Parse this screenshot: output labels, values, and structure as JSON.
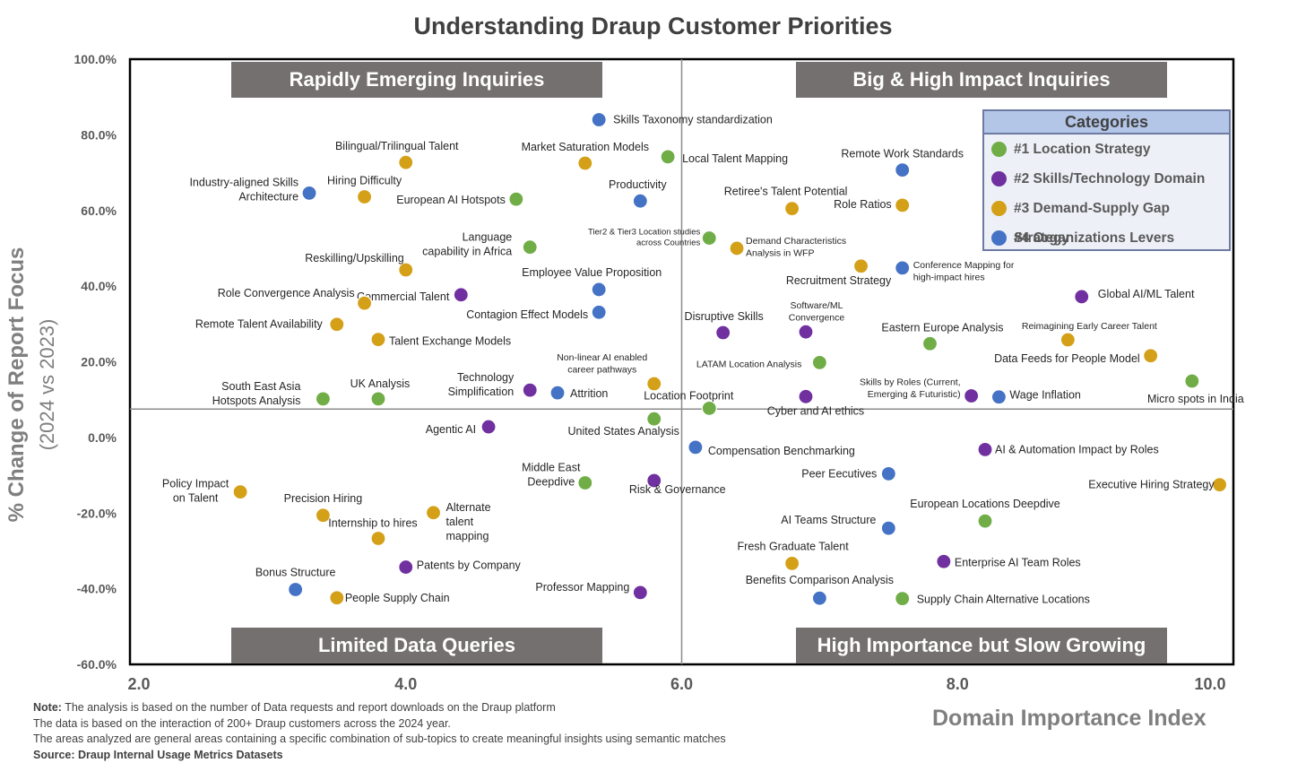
{
  "chart_data": {
    "type": "scatter",
    "title": "Understanding Draup Customer Priorities",
    "xlabel": "Domain Importance Index",
    "ylabel": "% Change of Report Focus",
    "ylabel_sub": "(2024 vs 2023)",
    "xlim": [
      2.0,
      10.0
    ],
    "ylim": [
      -60,
      100
    ],
    "x_ticks": [
      2.0,
      4.0,
      6.0,
      8.0,
      10.0
    ],
    "x_tick_labels": [
      "2.0",
      "4.0",
      "6.0",
      "8.0",
      "10.0"
    ],
    "y_ticks": [
      100,
      80,
      60,
      40,
      20,
      0,
      -20,
      -40,
      -60
    ],
    "y_tick_labels": [
      "100.0%",
      "80.0%",
      "60.0%",
      "40.0%",
      "20.0%",
      "0.0%",
      "-20.0%",
      "-40.0%",
      "-60.0%"
    ],
    "grid": false,
    "divider_x": 6.0,
    "divider_y": 7.5,
    "quadrants": {
      "top_left": "Rapidly Emerging Inquiries",
      "top_right": "Big & High Impact Inquiries",
      "bottom_left": "Limited Data Queries",
      "bottom_right": "High Importance but Slow Growing"
    },
    "legend": {
      "title": "Categories",
      "placement": "top-right",
      "items": [
        {
          "label": "#1 Location Strategy",
          "color": "#70ad47"
        },
        {
          "label": "#2 Skills/Technology Domain",
          "color": "#7030a0"
        },
        {
          "label": "#3 Demand-Supply Gap Strategy",
          "color": "#d4a017"
        },
        {
          "label": "#4 Organizations Levers",
          "color": "#4472c4"
        }
      ]
    },
    "points": [
      {
        "label": "Skills Taxonomy standardization",
        "x": 5.4,
        "y": 84.0,
        "cat": 3
      },
      {
        "label": "Bilingual/Trilingual Talent",
        "x": 4.0,
        "y": 72.7,
        "cat": 2
      },
      {
        "label": "Market Saturation Models",
        "x": 5.3,
        "y": 72.5,
        "cat": 2
      },
      {
        "label": "Local Talent Mapping",
        "x": 5.9,
        "y": 74.2,
        "cat": 0
      },
      {
        "label": "Remote Work Standards",
        "x": 7.6,
        "y": 70.7,
        "cat": 3
      },
      {
        "label": "Industry-aligned Skills Architecture",
        "x": 3.3,
        "y": 64.6,
        "cat": 3
      },
      {
        "label": "Hiring Difficulty",
        "x": 3.7,
        "y": 63.6,
        "cat": 2
      },
      {
        "label": "European AI Hotspots",
        "x": 4.8,
        "y": 63.0,
        "cat": 0
      },
      {
        "label": "Productivity",
        "x": 5.7,
        "y": 62.5,
        "cat": 3
      },
      {
        "label": "Retiree's Talent Potential",
        "x": 6.8,
        "y": 60.5,
        "cat": 2
      },
      {
        "label": "Role Ratios",
        "x": 7.6,
        "y": 61.4,
        "cat": 2
      },
      {
        "label": "Language capability in Africa",
        "x": 4.9,
        "y": 50.3,
        "cat": 0
      },
      {
        "label": "Tier2 & Tier3 Location studies across Countries",
        "x": 6.2,
        "y": 52.7,
        "cat": 0
      },
      {
        "label": "Demand Characteristics Analysis in WFP",
        "x": 6.4,
        "y": 50.0,
        "cat": 2
      },
      {
        "label": "Reskilling/Upskilling",
        "x": 4.0,
        "y": 44.3,
        "cat": 2
      },
      {
        "label": "Recruitment Strategy",
        "x": 7.3,
        "y": 45.3,
        "cat": 2
      },
      {
        "label": "Conference Mapping for high-impact hires",
        "x": 7.6,
        "y": 44.8,
        "cat": 3
      },
      {
        "label": "Employee Value Proposition",
        "x": 5.4,
        "y": 39.1,
        "cat": 3
      },
      {
        "label": "Commercial Talent",
        "x": 4.4,
        "y": 37.7,
        "cat": 1
      },
      {
        "label": "Role Convergence Analysis",
        "x": 3.7,
        "y": 35.5,
        "cat": 2
      },
      {
        "label": "Global AI/ML Talent",
        "x": 8.9,
        "y": 37.2,
        "cat": 1
      },
      {
        "label": "Contagion Effect Models",
        "x": 5.4,
        "y": 33.1,
        "cat": 3
      },
      {
        "label": "Remote Talent Availability",
        "x": 3.5,
        "y": 29.9,
        "cat": 2
      },
      {
        "label": "Disruptive Skills",
        "x": 6.3,
        "y": 27.7,
        "cat": 1
      },
      {
        "label": "Software/ML Convergence",
        "x": 6.9,
        "y": 27.9,
        "cat": 1
      },
      {
        "label": "Talent Exchange Models",
        "x": 3.8,
        "y": 25.9,
        "cat": 2
      },
      {
        "label": "Eastern Europe Analysis",
        "x": 7.8,
        "y": 24.8,
        "cat": 0
      },
      {
        "label": "Reimagining Early Career Talent",
        "x": 8.8,
        "y": 25.8,
        "cat": 2
      },
      {
        "label": "Data Feeds for People Model",
        "x": 9.4,
        "y": 21.6,
        "cat": 2
      },
      {
        "label": "LATAM Location Analysis",
        "x": 7.0,
        "y": 19.8,
        "cat": 0
      },
      {
        "label": "Non-linear AI enabled career pathways",
        "x": 5.8,
        "y": 14.2,
        "cat": 2
      },
      {
        "label": "Technology Simplification",
        "x": 4.9,
        "y": 12.5,
        "cat": 1
      },
      {
        "label": "Attrition",
        "x": 5.1,
        "y": 11.8,
        "cat": 3
      },
      {
        "label": "South East Asia Hotspots Analysis",
        "x": 3.4,
        "y": 10.2,
        "cat": 0
      },
      {
        "label": "UK Analysis",
        "x": 3.8,
        "y": 10.2,
        "cat": 0
      },
      {
        "label": "Location Footprint",
        "x": 6.2,
        "y": 7.7,
        "cat": 0
      },
      {
        "label": "Cyber and AI ethics",
        "x": 6.9,
        "y": 10.8,
        "cat": 1
      },
      {
        "label": "Skills by Roles (Current, Emerging & Futuristic)",
        "x": 8.1,
        "y": 11.0,
        "cat": 1
      },
      {
        "label": "Wage Inflation",
        "x": 8.3,
        "y": 10.7,
        "cat": 3
      },
      {
        "label": "Micro spots in India",
        "x": 9.7,
        "y": 14.9,
        "cat": 0
      },
      {
        "label": "Agentic AI",
        "x": 4.6,
        "y": 2.8,
        "cat": 1
      },
      {
        "label": "United States Analysis",
        "x": 5.8,
        "y": 4.9,
        "cat": 0
      },
      {
        "label": "Compensation Benchmarking",
        "x": 6.1,
        "y": -2.6,
        "cat": 3
      },
      {
        "label": "AI & Automation Impact by Roles",
        "x": 8.2,
        "y": -3.2,
        "cat": 1
      },
      {
        "label": "Peer Eecutives",
        "x": 7.5,
        "y": -9.6,
        "cat": 3
      },
      {
        "label": "Middle East Deepdive",
        "x": 5.3,
        "y": -12.0,
        "cat": 0
      },
      {
        "label": "Risk & Governance",
        "x": 5.8,
        "y": -11.4,
        "cat": 1
      },
      {
        "label": "Policy Impact on Talent",
        "x": 2.8,
        "y": -14.4,
        "cat": 2
      },
      {
        "label": "Executive Hiring Strategy",
        "x": 9.9,
        "y": -12.5,
        "cat": 2
      },
      {
        "label": "Precision Hiring",
        "x": 3.4,
        "y": -20.6,
        "cat": 2
      },
      {
        "label": "Alternate talent mapping",
        "x": 4.2,
        "y": -19.9,
        "cat": 2
      },
      {
        "label": "European Locations Deepdive",
        "x": 8.2,
        "y": -22.1,
        "cat": 0
      },
      {
        "label": "AI Teams Structure",
        "x": 7.5,
        "y": -24.0,
        "cat": 3
      },
      {
        "label": "Internship to hires",
        "x": 3.8,
        "y": -26.7,
        "cat": 2
      },
      {
        "label": "Fresh Graduate Talent",
        "x": 6.8,
        "y": -33.3,
        "cat": 2
      },
      {
        "label": "Enterprise AI Team Roles",
        "x": 7.9,
        "y": -32.8,
        "cat": 1
      },
      {
        "label": "Patents by Company",
        "x": 4.0,
        "y": -34.3,
        "cat": 1
      },
      {
        "label": "Bonus Structure",
        "x": 3.2,
        "y": -40.2,
        "cat": 3
      },
      {
        "label": "Professor Mapping",
        "x": 5.7,
        "y": -41.0,
        "cat": 1
      },
      {
        "label": "People Supply Chain",
        "x": 3.5,
        "y": -42.4,
        "cat": 2
      },
      {
        "label": "Benefits Comparison Analysis",
        "x": 7.0,
        "y": -42.5,
        "cat": 3
      },
      {
        "label": "Supply Chain Alternative Locations",
        "x": 7.6,
        "y": -42.6,
        "cat": 0
      }
    ]
  },
  "notes": {
    "note_label": "Note:",
    "note_text": " The analysis is based on the number of Data requests and report downloads on the Draup platform",
    "line2": "The data is based on the interaction of 200+ Draup customers across the 2024 year.",
    "line3": "The areas analyzed are general areas containing a specific combination of sub-topics to create meaningful insights using semantic matches",
    "source_label": "Source:",
    "source_text": " Draup Internal Usage Metrics Datasets"
  }
}
